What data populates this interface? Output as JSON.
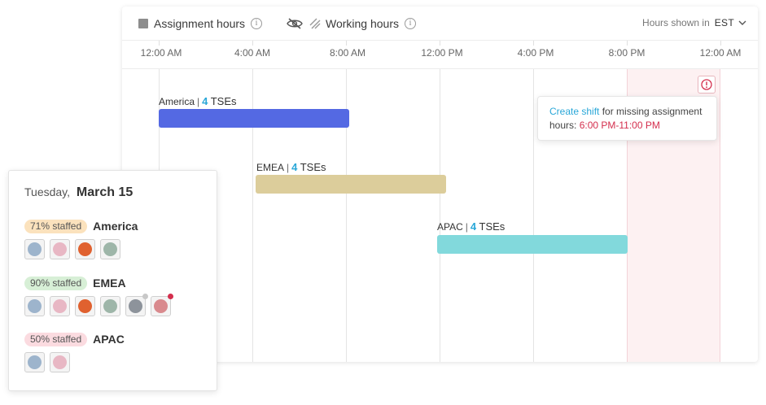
{
  "toolbar": {
    "assignment_label": "Assignment hours",
    "working_label": "Working hours",
    "tz_prefix": "Hours shown in",
    "tz_value": "EST",
    "info_glyph": "i"
  },
  "time_axis": [
    "12:00 AM",
    "4:00 AM",
    "8:00 AM",
    "12:00 PM",
    "4:00 PM",
    "8:00 PM",
    "12:00 AM"
  ],
  "rows": [
    {
      "region": "America",
      "count": "4",
      "unit": "TSEs",
      "color": "#5469e3",
      "start": "12:00 AM",
      "end": "8:00 AM"
    },
    {
      "region": "EMEA",
      "count": "4",
      "unit": "TSEs",
      "color": "#dccd9b",
      "start": "4:00 AM",
      "end": "12:00 PM"
    },
    {
      "region": "APAC",
      "count": "4",
      "unit": "TSEs",
      "color": "#82d9dc",
      "start": "12:00 PM",
      "end": "8:00 PM"
    }
  ],
  "separator": "|",
  "tooltip": {
    "link": "Create shift",
    "text": " for missing assignment hours: ",
    "hours": "6:00 PM-11:00 PM"
  },
  "day_card": {
    "weekday": "Tuesday,",
    "date": "March 15",
    "regions": [
      {
        "badge": "71% staffed",
        "name": "America",
        "badge_color": "#fbe2bd",
        "avatars": [
          "#9db4cc",
          "#e8b7c4",
          "#e0612f",
          "#9eb6a9"
        ]
      },
      {
        "badge": "90% staffed",
        "name": "EMEA",
        "badge_color": "#d7efd6",
        "avatars": [
          "#9db4cc",
          "#e8b7c4",
          "#e0612f",
          "#9eb6a9",
          "#8d939b",
          "#d98a8e"
        ]
      },
      {
        "badge": "50% staffed",
        "name": "APAC",
        "badge_color": "#fbdbe0",
        "avatars": [
          "#9db4cc",
          "#e8b7c4"
        ]
      }
    ]
  },
  "colors": {
    "accent": "#29a7d8",
    "alert": "#d42e4d",
    "missing_zone": "#fdf1f2"
  }
}
